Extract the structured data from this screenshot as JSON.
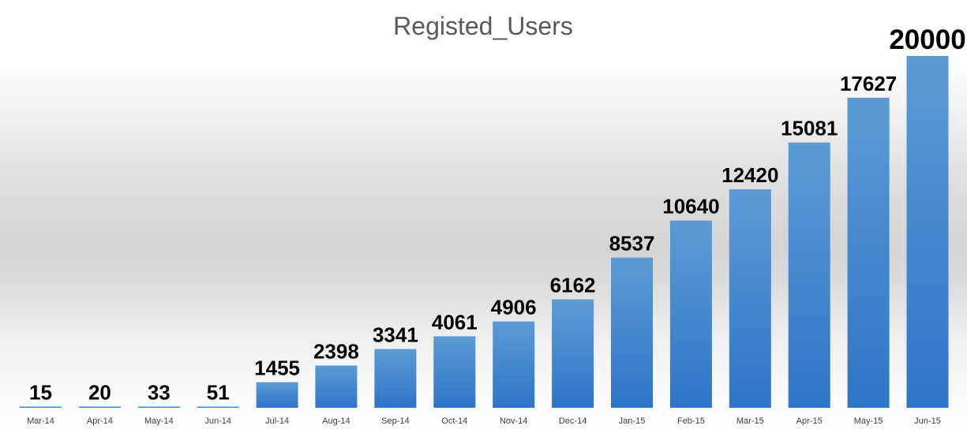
{
  "chart_data": {
    "type": "bar",
    "title": "Registed_Users",
    "xlabel": "",
    "ylabel": "",
    "categories": [
      "Mar-14",
      "Apr-14",
      "May-14",
      "Jun-14",
      "Jul-14",
      "Aug-14",
      "Sep-14",
      "Oct-14",
      "Nov-14",
      "Dec-14",
      "Jan-15",
      "Feb-15",
      "Mar-15",
      "Apr-15",
      "May-15",
      "Jun-15"
    ],
    "values": [
      15,
      20,
      33,
      51,
      1455,
      2398,
      3341,
      4061,
      4906,
      6162,
      8537,
      10640,
      12420,
      15081,
      17627,
      20000
    ],
    "ylim": [
      0,
      20000
    ],
    "grid": false,
    "legend": "none",
    "bar_color": "#5b9bd5",
    "bar_color_dark": "#2e75c7",
    "title_color": "#595959"
  }
}
